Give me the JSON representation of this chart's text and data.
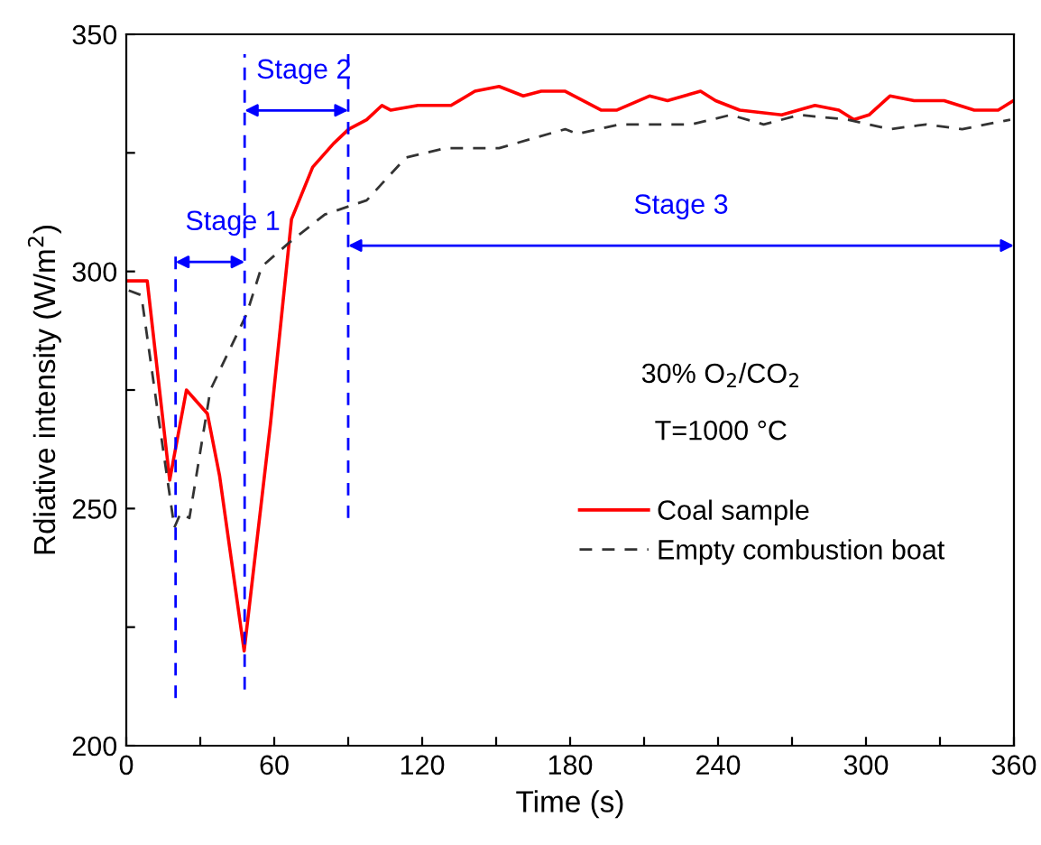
{
  "chart_data": {
    "type": "line",
    "xlabel": "Time (s)",
    "ylabel": "Rdiative intensity (W/m$^{2}$)",
    "xlim": [
      0,
      360
    ],
    "ylim": [
      200,
      350
    ],
    "xticks": [
      0,
      {
        "value": 30,
        "label": null
      },
      60,
      {
        "value": 90,
        "label": null
      },
      120,
      {
        "value": 150,
        "label": null
      },
      180,
      {
        "value": 210,
        "label": null
      },
      240,
      {
        "value": 270,
        "label": null
      },
      300,
      {
        "value": 330,
        "label": null
      },
      360
    ],
    "yticks": [
      200,
      {
        "value": 225,
        "label": null
      },
      250,
      {
        "value": 275,
        "label": null
      },
      300,
      {
        "value": 325,
        "label": null
      },
      350
    ],
    "grid": false,
    "legend": "right",
    "series": [
      {
        "name": "Coal sample",
        "color": "#ff0000",
        "line_style": "solid",
        "x": [
          1,
          8.5,
          17.6,
          24.4,
          32.9,
          37.8,
          47.8,
          58.5,
          67,
          75.6,
          84.1,
          90.2,
          97.5,
          103.7,
          107.3,
          118.3,
          131.7,
          141.4,
          151.2,
          161,
          168.3,
          178,
          192.7,
          198.8,
          212.2,
          219.5,
          232.9,
          239,
          248.8,
          265.8,
          279.3,
          289,
          295.1,
          301.2,
          309.7,
          319.5,
          331.7,
          343.9,
          353.6,
          359.8
        ],
        "values": [
          298,
          298,
          256,
          275,
          270,
          257,
          220,
          268,
          311,
          322,
          327,
          330,
          332,
          335,
          334,
          335,
          335,
          338,
          339,
          337,
          338,
          338,
          334,
          334,
          337,
          336,
          338,
          336,
          334,
          333,
          335,
          334,
          332,
          333,
          337,
          336,
          336,
          334,
          334,
          336
        ]
      },
      {
        "name": "Empty combustion boat",
        "color": "#333333",
        "line_style": "dashed",
        "x": [
          1,
          6.1,
          13.4,
          19.5,
          22,
          25.6,
          34.1,
          48.8,
          54.9,
          65.9,
          80.5,
          97.5,
          113.4,
          129.3,
          151.2,
          178,
          182.9,
          200,
          229.3,
          245.1,
          258.5,
          273.1,
          292.7,
          309.7,
          324.4,
          339,
          358.5
        ],
        "values": [
          296,
          295,
          268,
          246,
          249,
          248,
          275,
          291,
          301,
          306,
          312,
          315,
          324,
          326,
          326,
          330,
          329,
          331,
          331,
          333,
          331,
          333,
          332,
          330,
          331,
          330,
          332
        ]
      }
    ],
    "ref_lines": [
      {
        "axis": "x",
        "value": 20,
        "color": "#0000ff",
        "line_style": "dashed"
      },
      {
        "axis": "x",
        "value": 48,
        "color": "#0000ff",
        "line_style": "dashed"
      },
      {
        "axis": "x",
        "value": 90,
        "color": "#0000ff",
        "line_style": "dashed"
      }
    ],
    "annotations": [
      "Stage 1",
      "Stage 2",
      "Stage 3",
      "30% O$_{2}$/CO$_{2}$",
      "T=1000 °C"
    ]
  }
}
